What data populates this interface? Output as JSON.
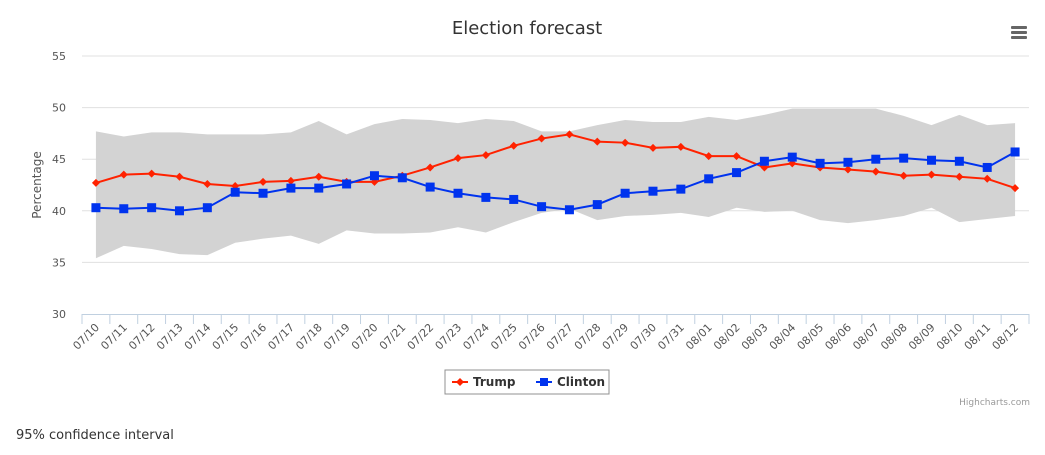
{
  "chart_data": {
    "type": "line",
    "title": "Election forecast",
    "ylabel": "Percentage",
    "xlabel": "",
    "ylim": [
      30,
      55
    ],
    "yticks": [
      30,
      35,
      40,
      45,
      50,
      55
    ],
    "grid": true,
    "legend_position": "bottom",
    "categories": [
      "07/10",
      "07/11",
      "07/12",
      "07/13",
      "07/14",
      "07/15",
      "07/16",
      "07/17",
      "07/18",
      "07/19",
      "07/20",
      "07/21",
      "07/22",
      "07/23",
      "07/24",
      "07/25",
      "07/26",
      "07/27",
      "07/28",
      "07/29",
      "07/30",
      "07/31",
      "08/01",
      "08/02",
      "08/03",
      "08/04",
      "08/05",
      "08/06",
      "08/07",
      "08/08",
      "08/09",
      "08/10",
      "08/11",
      "08/12"
    ],
    "series": [
      {
        "name": "Trump",
        "color": "#ff2200",
        "marker": "diamond",
        "values": [
          42.7,
          43.5,
          43.6,
          43.3,
          42.6,
          42.4,
          42.8,
          42.9,
          43.3,
          42.8,
          42.8,
          43.4,
          44.2,
          45.1,
          45.4,
          46.3,
          47.0,
          47.4,
          46.7,
          46.6,
          46.1,
          46.2,
          45.3,
          45.3,
          44.2,
          44.6,
          44.2,
          44.0,
          43.8,
          43.4,
          43.5,
          43.3,
          43.1,
          42.2
        ]
      },
      {
        "name": "Clinton",
        "color": "#0033ee",
        "marker": "square",
        "values": [
          40.3,
          40.2,
          40.3,
          40.0,
          40.3,
          41.8,
          41.7,
          42.2,
          42.2,
          42.6,
          43.4,
          43.2,
          42.3,
          41.7,
          41.3,
          41.1,
          40.4,
          40.1,
          40.6,
          41.7,
          41.9,
          42.1,
          43.1,
          43.7,
          44.8,
          45.2,
          44.6,
          44.7,
          45.0,
          45.1,
          44.9,
          44.8,
          44.2,
          45.7
        ]
      }
    ],
    "confidence_band": {
      "color": "#d3d3d3",
      "upper": [
        47.7,
        47.2,
        47.6,
        47.6,
        47.4,
        47.4,
        47.4,
        47.6,
        48.7,
        47.4,
        48.4,
        48.9,
        48.8,
        48.5,
        48.9,
        48.7,
        47.7,
        47.7,
        48.3,
        48.8,
        48.6,
        48.6,
        49.1,
        48.8,
        49.3,
        49.9,
        49.9,
        49.9,
        49.9,
        49.2,
        48.3,
        49.3,
        48.3,
        48.5
      ],
      "lower": [
        35.4,
        36.6,
        36.3,
        35.8,
        35.7,
        36.9,
        37.3,
        37.6,
        36.8,
        38.1,
        37.8,
        37.8,
        37.9,
        38.4,
        37.9,
        38.9,
        39.8,
        40.2,
        39.1,
        39.5,
        39.6,
        39.8,
        39.4,
        40.3,
        39.9,
        40.0,
        39.1,
        38.8,
        39.1,
        39.5,
        40.3,
        38.9,
        39.2,
        39.5
      ]
    },
    "credits": "Highcharts.com",
    "menu_icon": "hamburger-menu-icon"
  },
  "footnote": "95% confidence interval"
}
